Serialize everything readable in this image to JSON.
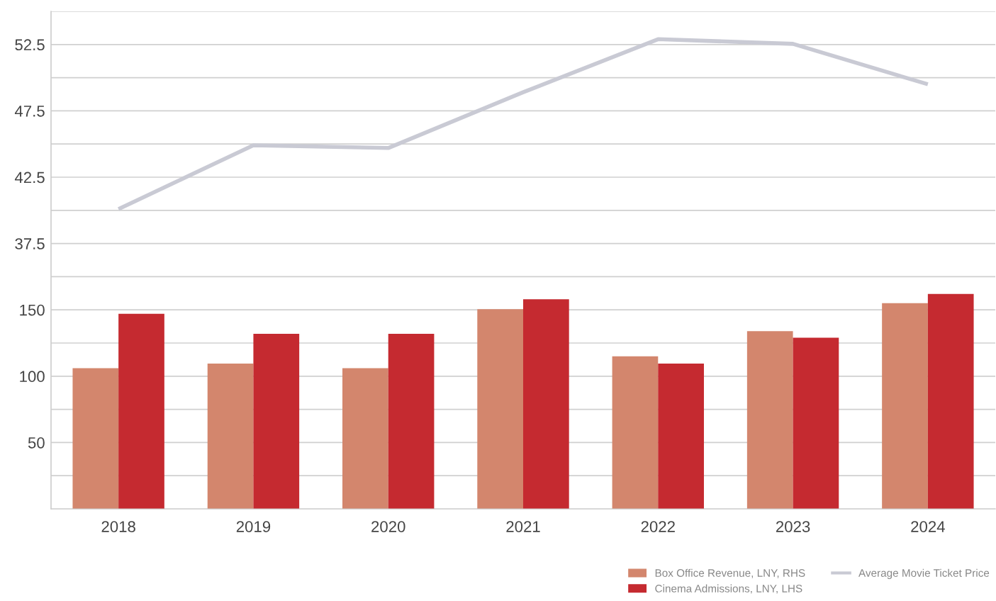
{
  "chart_data": {
    "type": "bar",
    "categories": [
      "2018",
      "2019",
      "2020",
      "2021",
      "2022",
      "2023",
      "2024"
    ],
    "series": [
      {
        "name": "Box Office Revenue, LNY, RHS",
        "color": "#d3866d",
        "values": [
          106,
          109.5,
          106,
          150.5,
          115,
          134,
          155
        ]
      },
      {
        "name": "Cinema Admissions, LNY, LHS",
        "color": "#c52a30",
        "values": [
          147,
          132,
          132,
          158,
          109.5,
          129,
          162
        ]
      },
      {
        "name": "Average Movie Ticket Price",
        "type": "line",
        "axis": "y2",
        "color": "#c9cad4",
        "values": [
          40.1,
          44.9,
          44.7,
          48.9,
          52.9,
          52.55,
          49.5
        ]
      }
    ],
    "ylim": [
      0,
      375
    ],
    "yticks": [
      {
        "value": 25,
        "label": null
      },
      50,
      {
        "value": 75,
        "label": null
      },
      100,
      {
        "value": 125,
        "label": null
      },
      150,
      {
        "value": 175,
        "label": null
      },
      {
        "value": 200,
        "label": null
      },
      {
        "value": 225,
        "label": null
      },
      {
        "value": 250,
        "label": null
      },
      {
        "value": 275,
        "label": null
      },
      {
        "value": 300,
        "label": null
      },
      {
        "value": 325,
        "label": null
      },
      {
        "value": 350,
        "label": null
      },
      {
        "value": 375,
        "label": null
      }
    ],
    "y2lim": [
      17.5,
      55
    ],
    "y2ticks": [
      37.5,
      42.5,
      47.5,
      52.5
    ],
    "grid": "y",
    "legend": "bottom right"
  }
}
